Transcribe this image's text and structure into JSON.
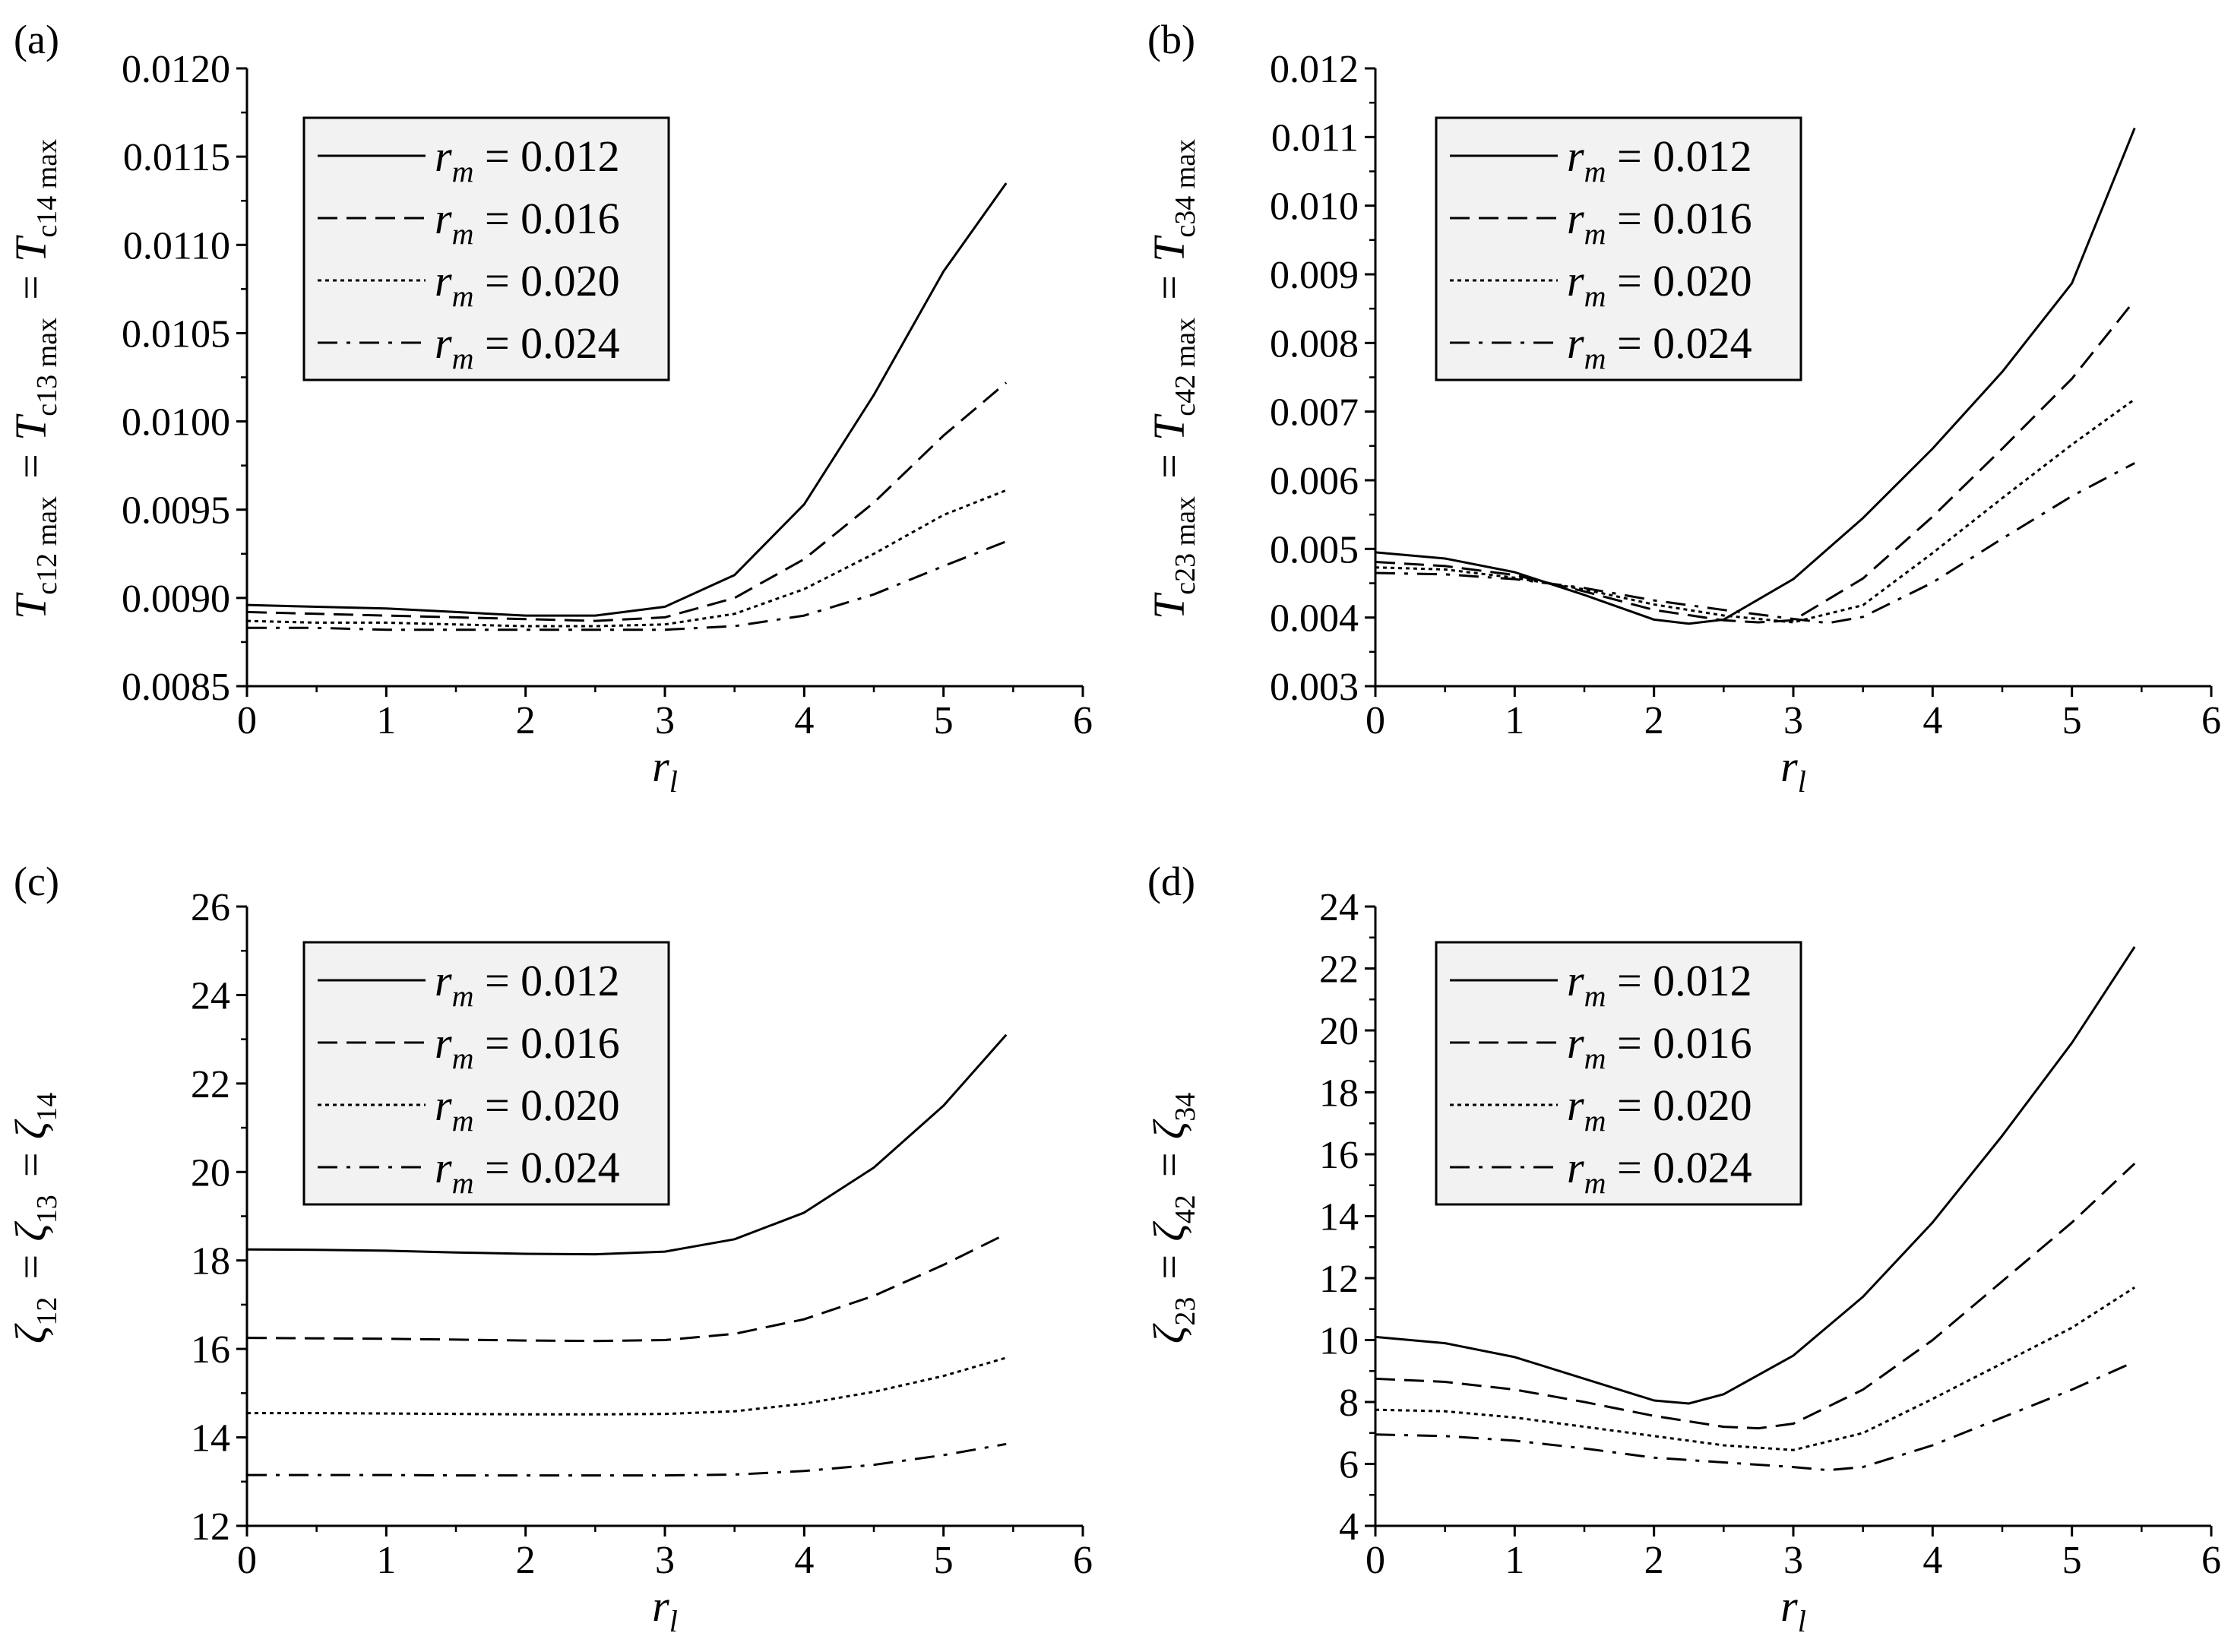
{
  "chart_data": [
    {
      "panel": "(a)",
      "type": "line",
      "xlabel": "r",
      "xlabel_sub": "l",
      "ylabel": "T_c12max = T_c13max = T_c14max",
      "ylabel_parts": [
        {
          "t": "T",
          "s": "c12 max"
        },
        {
          "t": " = T",
          "s": "c13 max"
        },
        {
          "t": " = T",
          "s": "c14 max"
        }
      ],
      "xlim": [
        0,
        6
      ],
      "ylim": [
        0.0085,
        0.012
      ],
      "xticks": [
        0,
        1,
        2,
        3,
        4,
        5,
        6
      ],
      "xtick_labels": [
        "0",
        "1",
        "2",
        "3",
        "4",
        "5",
        "6"
      ],
      "yticks": [
        0.0085,
        0.009,
        0.0095,
        0.01,
        0.0105,
        0.011,
        0.0115,
        0.012
      ],
      "ytick_labels": [
        "0.0085",
        "0.0090",
        "0.0095",
        "0.0100",
        "0.0105",
        "0.0110",
        "0.0115",
        "0.0120"
      ],
      "legend": [
        "r_m = 0.012",
        "r_m = 0.016",
        "r_m = 0.020",
        "r_m = 0.024"
      ],
      "series": [
        {
          "name": "r_m = 0.012",
          "style": "solid",
          "x": [
            0,
            0.5,
            1,
            1.5,
            2,
            2.5,
            3,
            3.5,
            4,
            4.5,
            5,
            5.45
          ],
          "y": [
            0.00896,
            0.00895,
            0.00894,
            0.00892,
            0.0089,
            0.0089,
            0.00895,
            0.00913,
            0.00953,
            0.01015,
            0.01085,
            0.01135
          ]
        },
        {
          "name": "r_m = 0.016",
          "style": "dashed",
          "x": [
            0,
            0.5,
            1,
            1.5,
            2,
            2.5,
            3,
            3.5,
            4,
            4.5,
            5,
            5.45
          ],
          "y": [
            0.00892,
            0.00891,
            0.0089,
            0.00889,
            0.00888,
            0.00887,
            0.00889,
            0.009,
            0.00922,
            0.00954,
            0.00992,
            0.01022
          ]
        },
        {
          "name": "r_m = 0.020",
          "style": "dotted",
          "x": [
            0,
            0.5,
            1,
            1.5,
            2,
            2.5,
            3,
            3.5,
            4,
            4.5,
            5,
            5.45
          ],
          "y": [
            0.00887,
            0.00886,
            0.00886,
            0.00885,
            0.00884,
            0.00884,
            0.00885,
            0.00891,
            0.00905,
            0.00925,
            0.00947,
            0.00961
          ]
        },
        {
          "name": "r_m = 0.024",
          "style": "dashdot",
          "x": [
            0,
            0.5,
            1,
            1.5,
            2,
            2.5,
            3,
            3.5,
            4,
            4.5,
            5,
            5.45
          ],
          "y": [
            0.00883,
            0.00883,
            0.00882,
            0.00882,
            0.00882,
            0.00882,
            0.00882,
            0.00884,
            0.0089,
            0.00902,
            0.00918,
            0.00932
          ]
        }
      ]
    },
    {
      "panel": "(b)",
      "type": "line",
      "xlabel": "r",
      "xlabel_sub": "l",
      "ylabel": "T_c23max = T_c42max = T_c34max",
      "ylabel_parts": [
        {
          "t": "T",
          "s": "c23 max"
        },
        {
          "t": " = T",
          "s": "c42 max"
        },
        {
          "t": " = T",
          "s": "c34 max"
        }
      ],
      "xlim": [
        0,
        6
      ],
      "ylim": [
        0.003,
        0.012
      ],
      "xticks": [
        0,
        1,
        2,
        3,
        4,
        5,
        6
      ],
      "xtick_labels": [
        "0",
        "1",
        "2",
        "3",
        "4",
        "5",
        "6"
      ],
      "yticks": [
        0.003,
        0.004,
        0.005,
        0.006,
        0.007,
        0.008,
        0.009,
        0.01,
        0.011,
        0.012
      ],
      "ytick_labels": [
        "0.003",
        "0.004",
        "0.005",
        "0.006",
        "0.007",
        "0.008",
        "0.009",
        "0.010",
        "0.011",
        "0.012"
      ],
      "legend": [
        "r_m = 0.012",
        "r_m = 0.016",
        "r_m = 0.020",
        "r_m = 0.024"
      ],
      "series": [
        {
          "name": "r_m = 0.012",
          "style": "solid",
          "x": [
            0,
            0.5,
            1,
            1.5,
            2,
            2.25,
            2.5,
            3,
            3.5,
            4,
            4.5,
            5,
            5.45
          ],
          "y": [
            0.00495,
            0.00486,
            0.00466,
            0.00433,
            0.00397,
            0.00391,
            0.00397,
            0.00456,
            0.00545,
            0.00646,
            0.00758,
            0.00887,
            0.01113
          ]
        },
        {
          "name": "r_m = 0.016",
          "style": "dashed",
          "x": [
            0,
            0.5,
            1,
            1.5,
            2,
            2.5,
            2.75,
            3,
            3.5,
            4,
            4.5,
            5,
            5.45
          ],
          "y": [
            0.00481,
            0.00475,
            0.00462,
            0.00438,
            0.00411,
            0.00396,
            0.00393,
            0.00396,
            0.00457,
            0.00547,
            0.00646,
            0.00748,
            0.00862
          ]
        },
        {
          "name": "r_m = 0.020",
          "style": "dotted",
          "x": [
            0,
            0.5,
            1,
            1.5,
            2,
            2.5,
            3,
            3.5,
            4,
            4.5,
            5,
            5.45
          ],
          "y": [
            0.00473,
            0.0047,
            0.00458,
            0.00441,
            0.00419,
            0.00403,
            0.00393,
            0.00418,
            0.00494,
            0.00574,
            0.00652,
            0.00718
          ]
        },
        {
          "name": "r_m = 0.024",
          "style": "dashdot",
          "x": [
            0,
            0.5,
            1,
            1.5,
            2,
            2.5,
            3,
            3.25,
            3.5,
            4,
            4.5,
            5,
            5.45
          ],
          "y": [
            0.00465,
            0.00463,
            0.00456,
            0.00443,
            0.00425,
            0.00411,
            0.00398,
            0.00392,
            0.00401,
            0.00451,
            0.00515,
            0.00577,
            0.00625
          ]
        }
      ]
    },
    {
      "panel": "(c)",
      "type": "line",
      "xlabel": "r",
      "xlabel_sub": "l",
      "ylabel": "ζ12 = ζ13 = ζ14",
      "ylabel_parts": [
        {
          "t": "ζ",
          "s": "12"
        },
        {
          "t": " = ζ",
          "s": "13"
        },
        {
          "t": " = ζ",
          "s": "14"
        }
      ],
      "xlim": [
        0,
        6
      ],
      "ylim": [
        12,
        26
      ],
      "xticks": [
        0,
        1,
        2,
        3,
        4,
        5,
        6
      ],
      "xtick_labels": [
        "0",
        "1",
        "2",
        "3",
        "4",
        "5",
        "6"
      ],
      "yticks": [
        12,
        14,
        16,
        18,
        20,
        22,
        24,
        26
      ],
      "ytick_labels": [
        "12",
        "14",
        "16",
        "18",
        "20",
        "22",
        "24",
        "26"
      ],
      "legend": [
        "r_m = 0.012",
        "r_m = 0.016",
        "r_m = 0.020",
        "r_m = 0.024"
      ],
      "series": [
        {
          "name": "r_m = 0.012",
          "style": "solid",
          "x": [
            0,
            0.5,
            1,
            1.5,
            2,
            2.5,
            3,
            3.5,
            4,
            4.5,
            5,
            5.45
          ],
          "y": [
            18.25,
            18.24,
            18.22,
            18.18,
            18.15,
            18.14,
            18.2,
            18.48,
            19.08,
            20.1,
            21.5,
            23.1
          ]
        },
        {
          "name": "r_m = 0.016",
          "style": "dashed",
          "x": [
            0,
            0.5,
            1,
            1.5,
            2,
            2.5,
            3,
            3.5,
            4,
            4.5,
            5,
            5.45
          ],
          "y": [
            16.25,
            16.24,
            16.23,
            16.21,
            16.19,
            16.18,
            16.2,
            16.34,
            16.67,
            17.2,
            17.9,
            18.6
          ]
        },
        {
          "name": "r_m = 0.020",
          "style": "dotted",
          "x": [
            0,
            0.5,
            1,
            1.5,
            2,
            2.5,
            3,
            3.5,
            4,
            4.5,
            5,
            5.45
          ],
          "y": [
            14.55,
            14.55,
            14.54,
            14.53,
            14.52,
            14.52,
            14.53,
            14.59,
            14.76,
            15.03,
            15.39,
            15.8
          ]
        },
        {
          "name": "r_m = 0.024",
          "style": "dashdot",
          "x": [
            0,
            0.5,
            1,
            1.5,
            2,
            2.5,
            3,
            3.5,
            4,
            4.5,
            5,
            5.45
          ],
          "y": [
            13.15,
            13.15,
            13.15,
            13.14,
            13.14,
            13.14,
            13.14,
            13.16,
            13.24,
            13.38,
            13.6,
            13.85
          ]
        }
      ]
    },
    {
      "panel": "(d)",
      "type": "line",
      "xlabel": "r",
      "xlabel_sub": "l",
      "ylabel": "ζ23 = ζ42 = ζ34",
      "ylabel_parts": [
        {
          "t": "ζ",
          "s": "23"
        },
        {
          "t": " = ζ",
          "s": "42"
        },
        {
          "t": " = ζ",
          "s": "34"
        }
      ],
      "xlim": [
        0,
        6
      ],
      "ylim": [
        4,
        24
      ],
      "xticks": [
        0,
        1,
        2,
        3,
        4,
        5,
        6
      ],
      "xtick_labels": [
        "0",
        "1",
        "2",
        "3",
        "4",
        "5",
        "6"
      ],
      "yticks": [
        4,
        6,
        8,
        10,
        12,
        14,
        16,
        18,
        20,
        22,
        24
      ],
      "ytick_labels": [
        "4",
        "6",
        "8",
        "10",
        "12",
        "14",
        "16",
        "18",
        "20",
        "22",
        "24"
      ],
      "legend": [
        "r_m = 0.012",
        "r_m = 0.016",
        "r_m = 0.020",
        "r_m = 0.024"
      ],
      "series": [
        {
          "name": "r_m = 0.012",
          "style": "solid",
          "x": [
            0,
            0.5,
            1,
            1.5,
            2,
            2.25,
            2.5,
            3,
            3.5,
            4,
            4.5,
            5,
            5.45
          ],
          "y": [
            10.1,
            9.9,
            9.45,
            8.75,
            8.05,
            7.95,
            8.25,
            9.5,
            11.4,
            13.8,
            16.6,
            19.6,
            22.7
          ]
        },
        {
          "name": "r_m = 0.016",
          "style": "dashed",
          "x": [
            0,
            0.5,
            1,
            1.5,
            2,
            2.5,
            2.75,
            3,
            3.5,
            4,
            4.5,
            5,
            5.45
          ],
          "y": [
            8.75,
            8.65,
            8.4,
            8.0,
            7.55,
            7.2,
            7.15,
            7.3,
            8.4,
            10.0,
            11.9,
            13.8,
            15.7
          ]
        },
        {
          "name": "r_m = 0.020",
          "style": "dotted",
          "x": [
            0,
            0.5,
            1,
            1.5,
            2,
            2.5,
            3,
            3.5,
            4,
            4.5,
            5,
            5.45
          ],
          "y": [
            7.75,
            7.7,
            7.5,
            7.2,
            6.9,
            6.6,
            6.45,
            7.0,
            8.1,
            9.25,
            10.4,
            11.7
          ]
        },
        {
          "name": "r_m = 0.024",
          "style": "dashdot",
          "x": [
            0,
            0.5,
            1,
            1.5,
            2,
            2.5,
            3,
            3.25,
            3.5,
            4,
            4.5,
            5,
            5.45
          ],
          "y": [
            6.95,
            6.9,
            6.75,
            6.5,
            6.2,
            6.05,
            5.9,
            5.8,
            5.9,
            6.6,
            7.5,
            8.4,
            9.3
          ]
        }
      ]
    }
  ]
}
